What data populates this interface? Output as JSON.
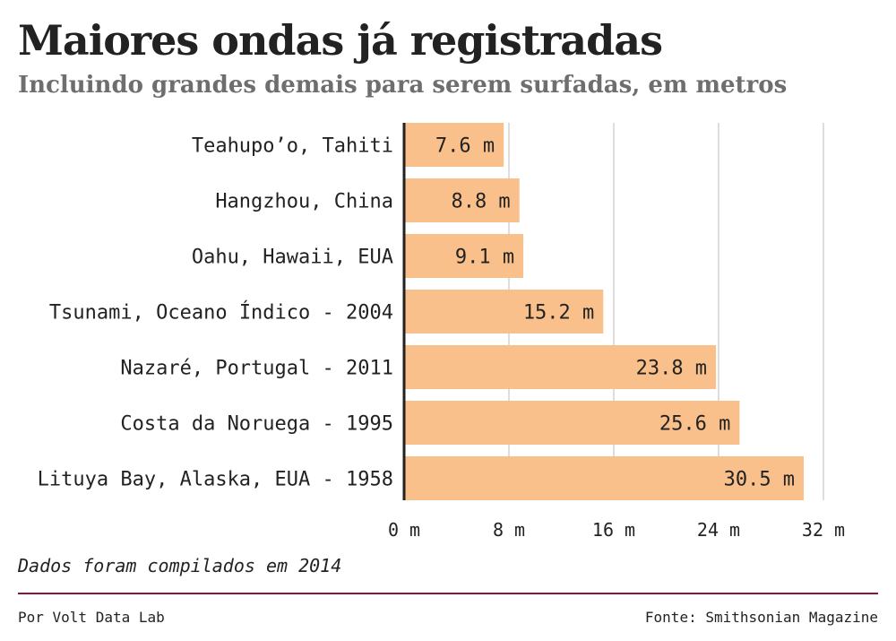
{
  "header": {
    "title": "Maiores ondas já registradas",
    "subtitle": "Incluindo grandes demais para serem surfadas, em metros"
  },
  "footer": {
    "note": "Dados foram compilados em 2014",
    "byline": "Por Volt Data Lab",
    "source": "Fonte: Smithsonian Magazine"
  },
  "colors": {
    "bar": "#f9c08b",
    "grid": "#dddddd",
    "axis": "#222222",
    "rule": "#8a1538"
  },
  "chart_data": {
    "type": "bar",
    "orientation": "horizontal",
    "categories": [
      "Teahupo’o, Tahiti",
      "Hangzhou, China",
      "Oahu, Hawaii, EUA",
      "Tsunami, Oceano Índico - 2004",
      "Nazaré, Portugal - 2011",
      "Costa da Noruega - 1995",
      "Lituya Bay, Alaska, EUA - 1958"
    ],
    "values": [
      7.6,
      8.8,
      9.1,
      15.2,
      23.8,
      25.6,
      30.5
    ],
    "data_labels": [
      "7.6 m",
      "8.8 m",
      "9.1 m",
      "15.2 m",
      "23.8 m",
      "25.6 m",
      "30.5 m"
    ],
    "xlim": [
      0,
      32
    ],
    "x_ticks": [
      0,
      8,
      16,
      24,
      32
    ],
    "x_tick_labels": [
      "0 m",
      "8 m",
      "16 m",
      "24 m",
      "32 m"
    ],
    "grid": true
  }
}
